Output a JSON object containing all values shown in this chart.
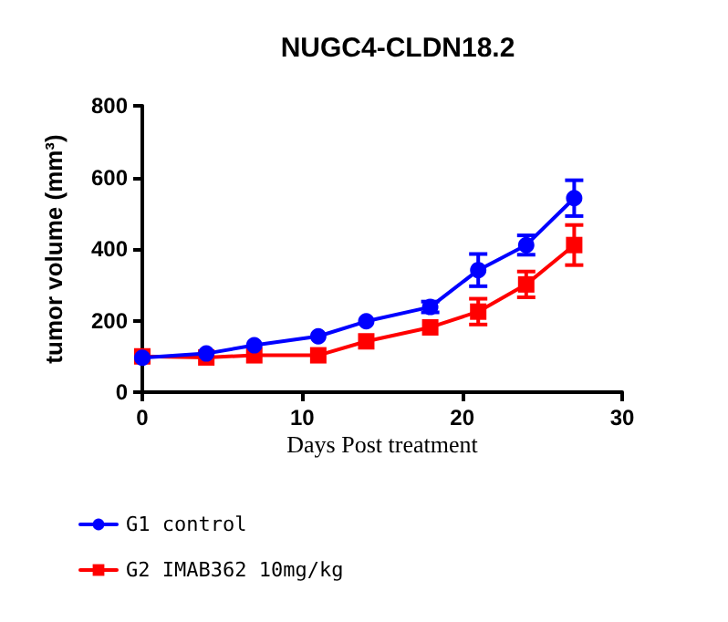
{
  "chart_data": {
    "type": "line",
    "title": "NUGC4-CLDN18.2",
    "xlabel": "Days Post treatment",
    "ylabel": "tumor volume (mm³)",
    "x": [
      0,
      4,
      7,
      11,
      14,
      18,
      21,
      24,
      27
    ],
    "series": [
      {
        "name": "G1 control",
        "color": "#0000ff",
        "marker": "circle",
        "values": [
          96,
          108,
          131,
          156,
          198,
          238,
          341,
          411,
          542
        ],
        "errors": [
          null,
          null,
          null,
          null,
          null,
          15,
          45,
          27,
          50
        ]
      },
      {
        "name": "G2 IMAB362 10mg/kg",
        "color": "#ff0000",
        "marker": "square",
        "values": [
          100,
          97,
          103,
          103,
          142,
          181,
          225,
          301,
          411
        ],
        "errors": [
          null,
          null,
          null,
          null,
          null,
          null,
          36,
          36,
          56
        ]
      }
    ],
    "xlim": [
      0,
      30
    ],
    "xticks": [
      0,
      10,
      20,
      30
    ],
    "ylim": [
      0,
      800
    ],
    "yticks": [
      0,
      200,
      400,
      600,
      800
    ],
    "grid": false,
    "legend": "bottom left",
    "line_style": "solid"
  }
}
